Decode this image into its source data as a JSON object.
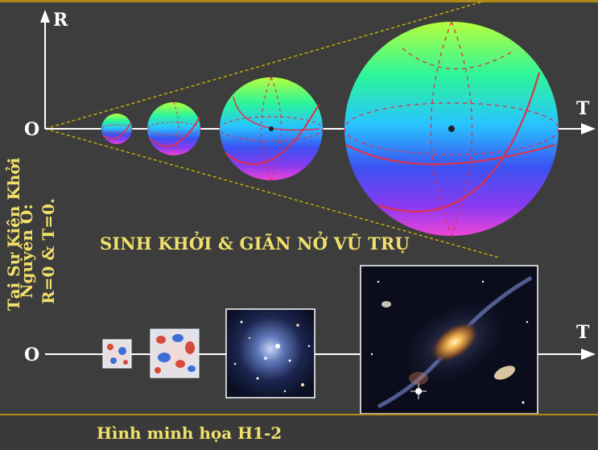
{
  "axes": {
    "vertical_label": "R",
    "horizontal_label_top": "T",
    "horizontal_label_bottom": "T",
    "origin_top": "O",
    "origin_bottom": "O"
  },
  "title": "SINH KHỞI & GIÃN NỞ VŨ TRỤ",
  "side_text": {
    "line1": "Tại Sự Kiện Khởi",
    "line2": "Nguyên O:",
    "line3": "R=0 & T=0."
  },
  "caption": "Hình minh họa H1-2",
  "colors": {
    "background": "#3d3d3d",
    "text_yellow": "#f1e06a",
    "cone_lines": "#c9b400",
    "axis": "#ffffff",
    "sphere_lines": "#e0304a",
    "border": "#b08a18"
  },
  "spheres": [
    {
      "name": "sphere-1"
    },
    {
      "name": "sphere-2"
    },
    {
      "name": "sphere-3"
    },
    {
      "name": "sphere-4"
    }
  ],
  "images": [
    {
      "name": "cmb-small-image"
    },
    {
      "name": "cmb-large-image"
    },
    {
      "name": "galaxy-cluster-image"
    },
    {
      "name": "galaxy-merger-image"
    }
  ]
}
